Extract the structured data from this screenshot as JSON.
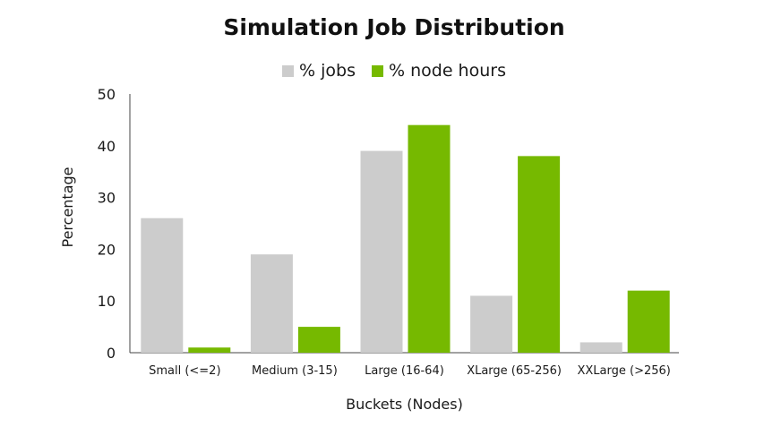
{
  "chart_data": {
    "type": "bar",
    "title": "Simulation Job Distribution",
    "xlabel": "Buckets (Nodes)",
    "ylabel": "Percentage",
    "categories": [
      "Small (<=2)",
      "Medium (3-15)",
      "Large (16-64)",
      "XLarge (65-256)",
      "XXLarge (>256)"
    ],
    "series": [
      {
        "name": "% jobs",
        "values": [
          26,
          19,
          39,
          11,
          2
        ],
        "color": "#cccccc"
      },
      {
        "name": "% node hours",
        "values": [
          1,
          5,
          44,
          38,
          12
        ],
        "color": "#76b900"
      }
    ],
    "ylim": [
      0,
      50
    ],
    "yticks": [
      0,
      10,
      20,
      30,
      40,
      50
    ],
    "grid": false,
    "legend_position": "top-center"
  }
}
